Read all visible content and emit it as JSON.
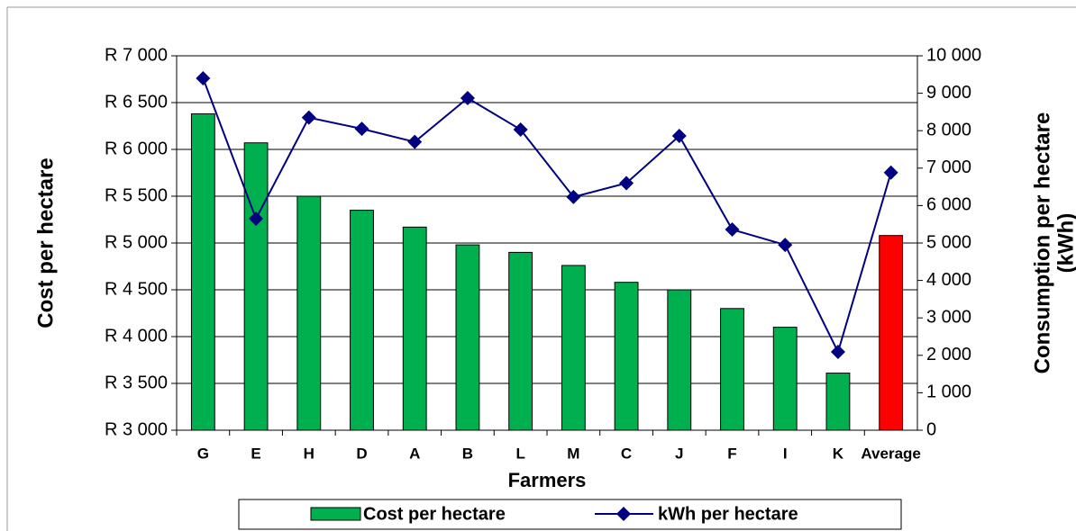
{
  "chart_data": {
    "type": "bar_line",
    "xlabel": "Farmers",
    "ylabel": "Cost per hectare",
    "y2label": [
      "Consumption per hectare",
      "(kWh)"
    ],
    "categories": [
      "G",
      "E",
      "H",
      "D",
      "A",
      "B",
      "L",
      "M",
      "C",
      "J",
      "F",
      "I",
      "K",
      "Average"
    ],
    "series": [
      {
        "name": "Cost per hectare",
        "type": "bar",
        "color": "#00b04f",
        "colors": [
          "#00b04f",
          "#00b04f",
          "#00b04f",
          "#00b04f",
          "#00b04f",
          "#00b04f",
          "#00b04f",
          "#00b04f",
          "#00b04f",
          "#00b04f",
          "#00b04f",
          "#00b04f",
          "#00b04f",
          "#ff0000"
        ],
        "values": [
          6380,
          6070,
          5500,
          5350,
          5170,
          4980,
          4900,
          4760,
          4580,
          4500,
          4300,
          4100,
          3610,
          5080
        ]
      },
      {
        "name": "kWh per hectare",
        "type": "line",
        "axis": "y2",
        "color": "#000080",
        "values": [
          9400,
          5650,
          8350,
          8050,
          7700,
          8870,
          8030,
          6230,
          6600,
          7860,
          5360,
          4950,
          2090,
          6880
        ]
      }
    ],
    "ylim": [
      3000,
      7000
    ],
    "yticks": [
      {
        "value": 3000,
        "label": "R 3 000"
      },
      {
        "value": 3500,
        "label": "R 3 500"
      },
      {
        "value": 4000,
        "label": "R 4 000"
      },
      {
        "value": 4500,
        "label": "R 4 500"
      },
      {
        "value": 5000,
        "label": "R 5 000"
      },
      {
        "value": 5500,
        "label": "R 5 500"
      },
      {
        "value": 6000,
        "label": "R 6 000"
      },
      {
        "value": 6500,
        "label": "R 6 500"
      },
      {
        "value": 7000,
        "label": "R 7 000"
      }
    ],
    "y2lim": [
      0,
      10000
    ],
    "y2ticks": [
      0,
      {
        "value": 1000,
        "label": "1 000"
      },
      {
        "value": 2000,
        "label": "2 000"
      },
      {
        "value": 3000,
        "label": "3 000"
      },
      {
        "value": 4000,
        "label": "4 000"
      },
      {
        "value": 5000,
        "label": "5 000"
      },
      {
        "value": 6000,
        "label": "6 000"
      },
      {
        "value": 7000,
        "label": "7 000"
      },
      {
        "value": 8000,
        "label": "8 000"
      },
      {
        "value": 9000,
        "label": "9 000"
      },
      {
        "value": 10000,
        "label": "10 000"
      }
    ],
    "grid": true
  }
}
